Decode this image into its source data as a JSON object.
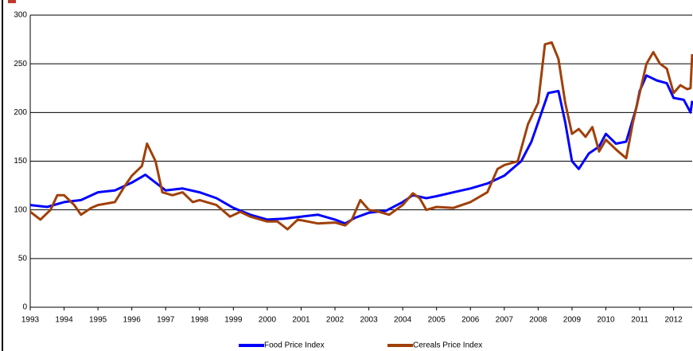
{
  "chart_data": {
    "type": "line",
    "xlim": [
      1993,
      2012.55
    ],
    "xticks": [
      1993,
      1994,
      1995,
      1996,
      1997,
      1998,
      1999,
      2000,
      2001,
      2002,
      2003,
      2004,
      2005,
      2006,
      2007,
      2008,
      2009,
      2010,
      2011,
      2012
    ],
    "ylim": [
      0,
      300
    ],
    "yticks": [
      0,
      50,
      100,
      150,
      200,
      250,
      300
    ],
    "grid": true,
    "legend": "bottom",
    "series": [
      {
        "name": "Food Price Index",
        "color": "#0000ff",
        "x": [
          1993.0,
          1993.5,
          1994.0,
          1994.5,
          1995.0,
          1995.5,
          1996.0,
          1996.4,
          1996.7,
          1997.0,
          1997.5,
          1998.0,
          1998.5,
          1999.0,
          1999.5,
          2000.0,
          2000.5,
          2001.0,
          2001.5,
          2002.0,
          2002.3,
          2002.6,
          2003.0,
          2003.5,
          2004.0,
          2004.3,
          2004.7,
          2005.0,
          2005.5,
          2006.0,
          2006.5,
          2007.0,
          2007.5,
          2007.8,
          2008.0,
          2008.3,
          2008.6,
          2008.8,
          2009.0,
          2009.2,
          2009.5,
          2009.8,
          2010.0,
          2010.3,
          2010.6,
          2010.9,
          2011.0,
          2011.2,
          2011.5,
          2011.8,
          2012.0,
          2012.3,
          2012.5,
          2012.55
        ],
        "values": [
          105,
          103,
          108,
          110,
          118,
          120,
          128,
          136,
          128,
          120,
          122,
          118,
          112,
          102,
          95,
          90,
          91,
          93,
          95,
          90,
          86,
          92,
          97,
          99,
          108,
          115,
          112,
          114,
          118,
          122,
          127,
          135,
          150,
          170,
          190,
          220,
          222,
          190,
          150,
          142,
          158,
          165,
          178,
          168,
          170,
          205,
          222,
          238,
          233,
          230,
          215,
          213,
          200,
          212
        ]
      },
      {
        "name": "Cereals Price Index",
        "color": "#a0400a",
        "x": [
          1993.0,
          1993.3,
          1993.6,
          1993.8,
          1994.0,
          1994.3,
          1994.5,
          1994.8,
          1995.0,
          1995.5,
          1995.8,
          1996.0,
          1996.3,
          1996.45,
          1996.7,
          1996.9,
          1997.2,
          1997.5,
          1997.8,
          1998.0,
          1998.5,
          1998.9,
          1999.2,
          1999.5,
          2000.0,
          2000.3,
          2000.6,
          2000.9,
          2001.2,
          2001.5,
          2002.0,
          2002.3,
          2002.5,
          2002.75,
          2003.0,
          2003.3,
          2003.6,
          2004.0,
          2004.3,
          2004.5,
          2004.7,
          2005.0,
          2005.5,
          2006.0,
          2006.5,
          2006.8,
          2007.0,
          2007.4,
          2007.7,
          2008.0,
          2008.2,
          2008.4,
          2008.6,
          2008.8,
          2009.0,
          2009.2,
          2009.4,
          2009.6,
          2009.8,
          2010.0,
          2010.3,
          2010.6,
          2010.8,
          2011.0,
          2011.2,
          2011.4,
          2011.6,
          2011.8,
          2012.0,
          2012.2,
          2012.4,
          2012.5,
          2012.55
        ],
        "values": [
          98,
          90,
          100,
          115,
          115,
          105,
          95,
          102,
          105,
          108,
          125,
          135,
          145,
          168,
          150,
          118,
          115,
          118,
          108,
          110,
          105,
          93,
          98,
          93,
          88,
          88,
          80,
          90,
          88,
          86,
          87,
          84,
          90,
          110,
          100,
          98,
          95,
          105,
          117,
          112,
          100,
          103,
          102,
          108,
          118,
          142,
          146,
          150,
          188,
          210,
          270,
          272,
          255,
          210,
          178,
          183,
          175,
          185,
          160,
          172,
          162,
          153,
          190,
          220,
          250,
          262,
          250,
          245,
          220,
          228,
          224,
          225,
          260
        ]
      }
    ]
  }
}
